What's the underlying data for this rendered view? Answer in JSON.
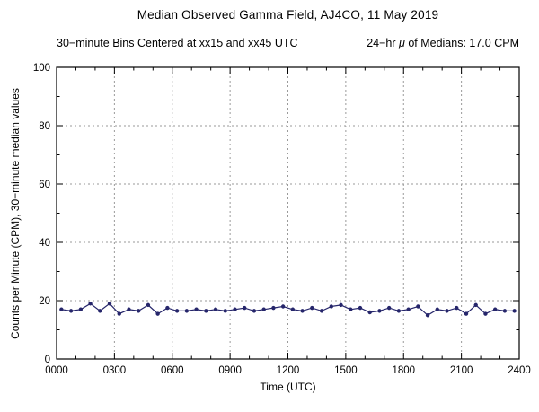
{
  "header": {
    "title": "Median Observed Gamma Field, AJ4CO, 11 May 2019",
    "subtitle_left": "30−minute Bins Centered at xx15 and xx45 UTC",
    "subtitle_right_prefix": "24−hr ",
    "subtitle_right_mu": "μ",
    "subtitle_right_suffix": " of Medians: 17.0 CPM"
  },
  "chart_data": {
    "type": "line",
    "title": "Median Observed Gamma Field, AJ4CO, 11 May 2019",
    "subtitle": "30−minute Bins Centered at xx15 and xx45 UTC     24−hr μ of Medians: 17.0 CPM",
    "xlabel": "Time (UTC)",
    "ylabel": "Counts per Minute (CPM), 30−minute median values",
    "xlim": [
      0,
      24
    ],
    "ylim": [
      0,
      100
    ],
    "grid": true,
    "mean_of_medians_cpm": 17.0,
    "xticks": [
      0,
      3,
      6,
      9,
      12,
      15,
      18,
      21,
      24
    ],
    "xtick_labels": [
      "0000",
      "0300",
      "0600",
      "0900",
      "1200",
      "1500",
      "1800",
      "2100",
      "2400"
    ],
    "xticks_minor": [
      1,
      2,
      4,
      5,
      7,
      8,
      10,
      11,
      13,
      14,
      16,
      17,
      19,
      20,
      22,
      23
    ],
    "yticks": [
      0,
      20,
      40,
      60,
      80,
      100
    ],
    "ytick_labels": [
      "0",
      "20",
      "40",
      "60",
      "80",
      "100"
    ],
    "yticks_minor": [
      10,
      30,
      50,
      70,
      90
    ],
    "grid_x": [
      3,
      6,
      9,
      12,
      15,
      18,
      21
    ],
    "grid_y": [
      20,
      40,
      60,
      80
    ],
    "line_color": "#26266b",
    "grid_color": "#9a9a9a",
    "x": [
      0.25,
      0.75,
      1.25,
      1.75,
      2.25,
      2.75,
      3.25,
      3.75,
      4.25,
      4.75,
      5.25,
      5.75,
      6.25,
      6.75,
      7.25,
      7.75,
      8.25,
      8.75,
      9.25,
      9.75,
      10.25,
      10.75,
      11.25,
      11.75,
      12.25,
      12.75,
      13.25,
      13.75,
      14.25,
      14.75,
      15.25,
      15.75,
      16.25,
      16.75,
      17.25,
      17.75,
      18.25,
      18.75,
      19.25,
      19.75,
      20.25,
      20.75,
      21.25,
      21.75,
      22.25,
      22.75,
      23.25,
      23.75
    ],
    "values": [
      17,
      16.5,
      17,
      19,
      16.5,
      19,
      15.5,
      17,
      16.5,
      18.5,
      15.5,
      17.5,
      16.5,
      16.5,
      17,
      16.5,
      17,
      16.5,
      17,
      17.5,
      16.5,
      17,
      17.5,
      18,
      17,
      16.5,
      17.5,
      16.5,
      18,
      18.5,
      17,
      17.5,
      16,
      16.5,
      17.5,
      16.5,
      17,
      18,
      15,
      17,
      16.5,
      17.5,
      15.5,
      18.5,
      15.5,
      17,
      16.5,
      16.5
    ]
  },
  "axes": {
    "xlabel": "Time (UTC)",
    "ylabel": "Counts per Minute (CPM), 30−minute median values"
  }
}
